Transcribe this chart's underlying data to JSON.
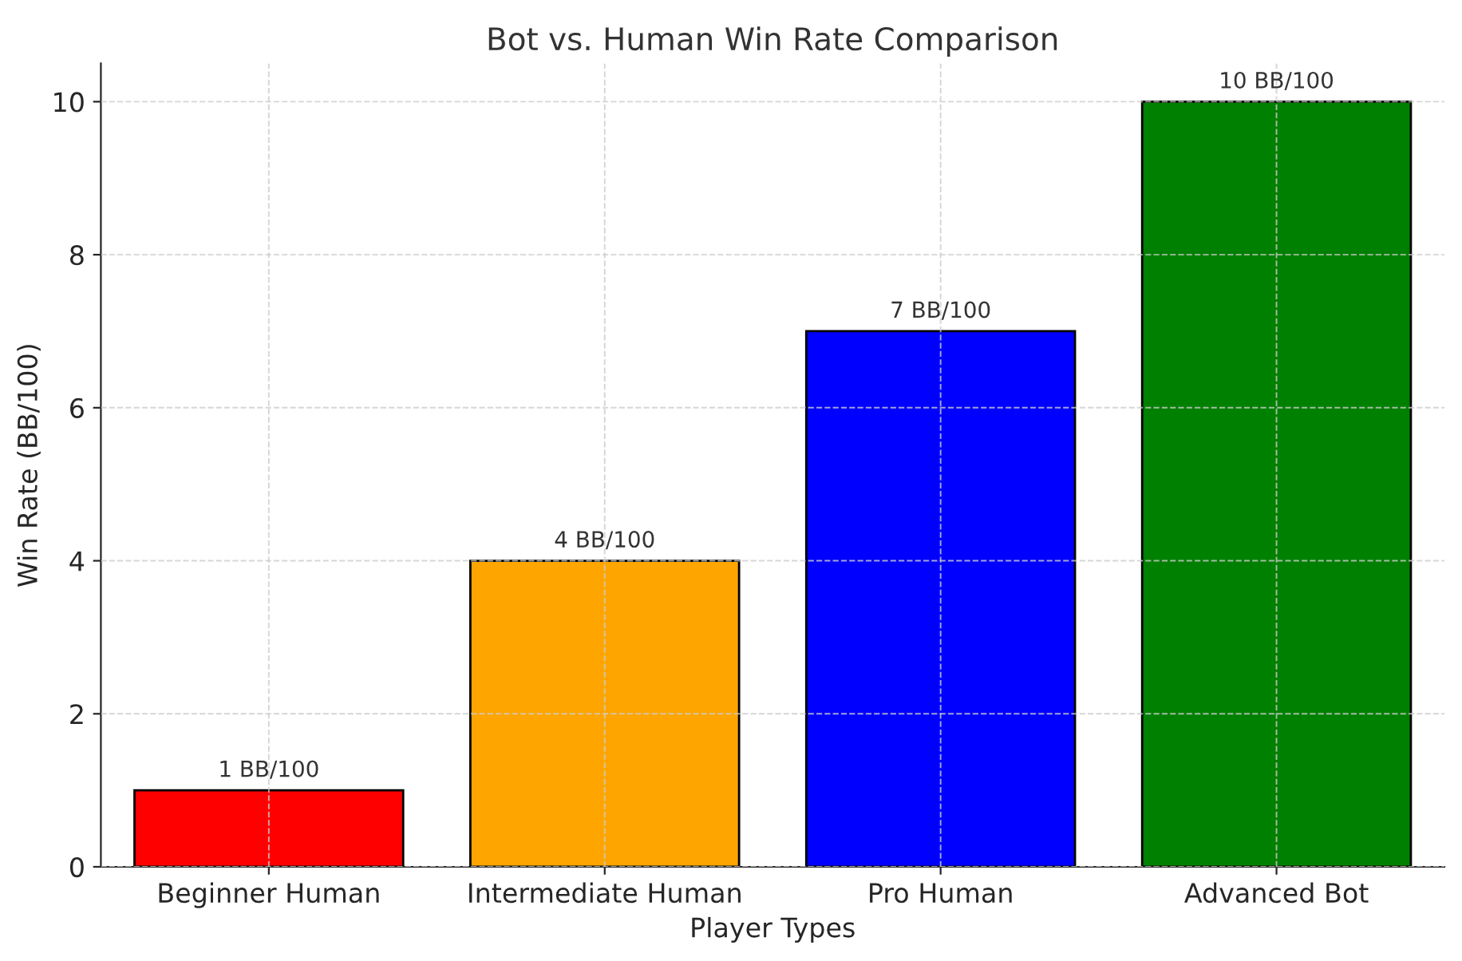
{
  "chart_data": {
    "type": "bar",
    "title": "Bot vs. Human Win Rate Comparison",
    "xlabel": "Player Types",
    "ylabel": "Win Rate (BB/100)",
    "categories": [
      "Beginner Human",
      "Intermediate Human",
      "Pro Human",
      "Advanced Bot"
    ],
    "values": [
      1,
      4,
      7,
      10
    ],
    "colors": [
      "#ff0000",
      "#ffa500",
      "#0000ff",
      "#008000"
    ],
    "value_labels": [
      "1 BB/100",
      "4 BB/100",
      "7 BB/100",
      "10 BB/100"
    ],
    "ylim": [
      0,
      10.5
    ],
    "yticks": [
      0,
      2,
      4,
      6,
      8,
      10
    ],
    "grid": true
  }
}
